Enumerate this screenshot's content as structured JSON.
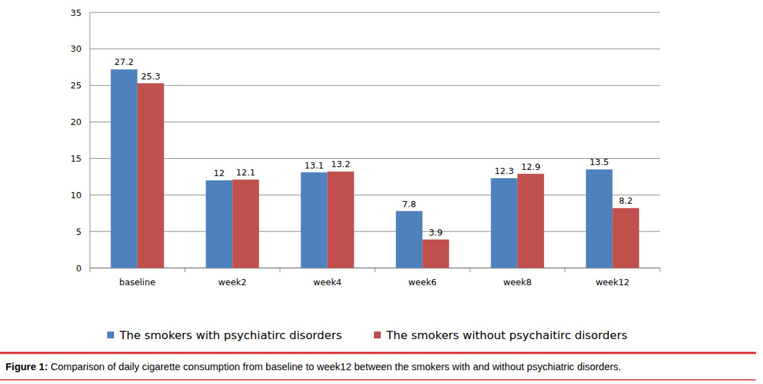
{
  "chart_data": {
    "type": "bar",
    "categories": [
      "baseline",
      "week2",
      "week4",
      "week6",
      "week8",
      "week12"
    ],
    "series": [
      {
        "name": "The smokers with psychiatirc disorders",
        "color": "#4f81bd",
        "values": [
          27.2,
          12,
          13.1,
          7.8,
          12.3,
          13.5
        ]
      },
      {
        "name": "The smokers without psychaitirc disorders",
        "color": "#c0504d",
        "values": [
          25.3,
          12.1,
          13.2,
          3.9,
          12.9,
          8.2
        ]
      }
    ],
    "ylim": [
      0,
      35
    ],
    "yticks": [
      0,
      5,
      10,
      15,
      20,
      25,
      30,
      35
    ],
    "grid": true,
    "legend": "bottom",
    "data_labels": true
  },
  "caption": {
    "label": "Figure 1:",
    "text": "Comparison of daily cigarette consumption from baseline to week12 between the smokers with and without psychiatric disorders."
  }
}
